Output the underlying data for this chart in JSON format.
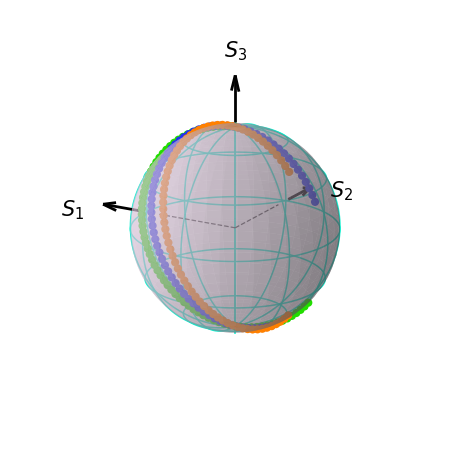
{
  "sphere_color": "#ddc8dd",
  "sphere_alpha": 0.45,
  "grid_color": "#00eecc",
  "grid_alpha": 0.9,
  "grid_linewidth": 1.1,
  "background_color": "white",
  "dot_size": 35,
  "orange_color": "#ff8000",
  "blue_color": "#2233ee",
  "green_color": "#22dd00",
  "n_dots": 70,
  "elev": 18,
  "azim": -60,
  "arrow_color": "black",
  "dashed_color": "black"
}
